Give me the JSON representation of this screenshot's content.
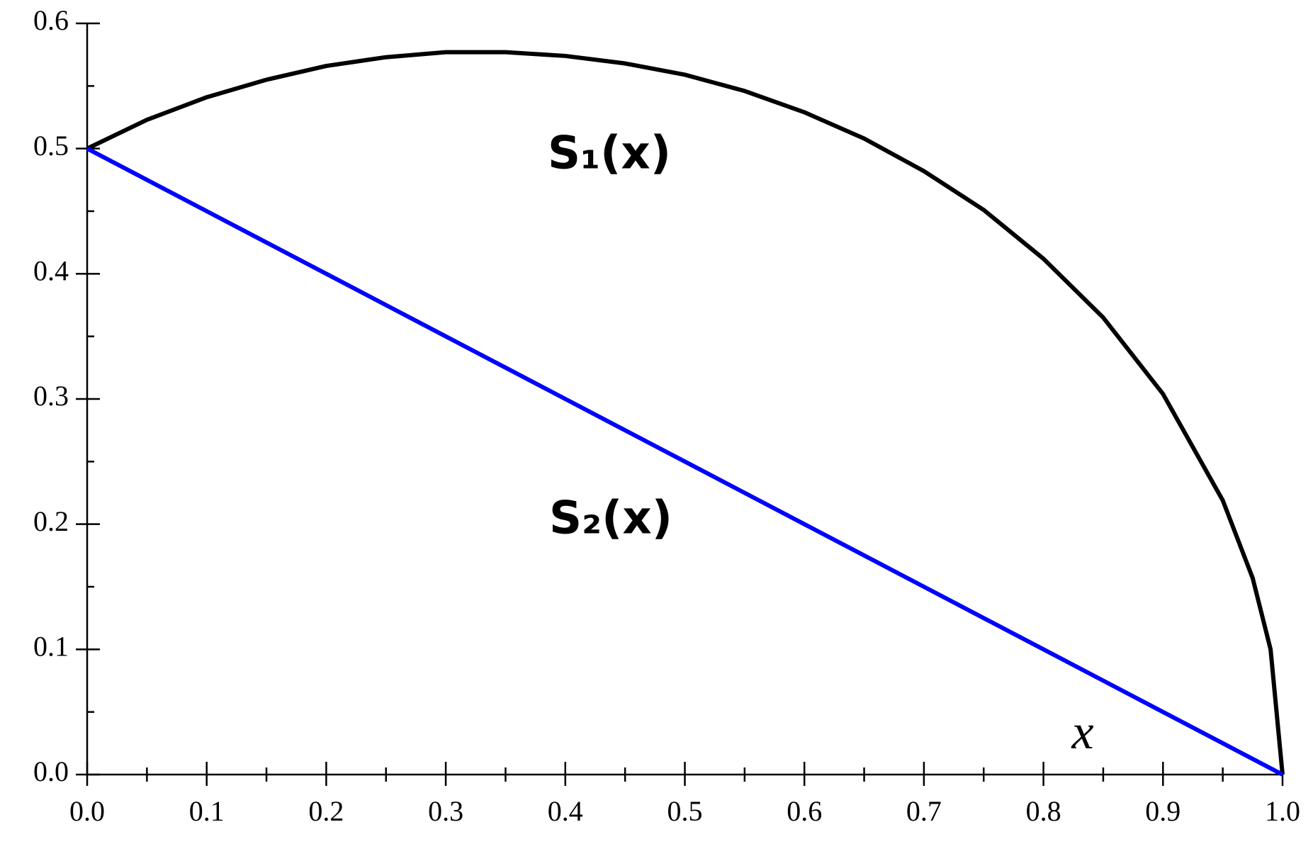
{
  "chart_data": {
    "type": "line",
    "x": [
      0,
      0.05,
      0.1,
      0.15,
      0.2,
      0.25,
      0.3,
      0.35,
      0.4,
      0.45,
      0.5,
      0.55,
      0.6,
      0.65,
      0.7,
      0.75,
      0.8,
      0.85,
      0.9,
      0.95,
      0.975,
      0.99,
      1
    ],
    "series": [
      {
        "name": "S₁(x)",
        "color": "#000000",
        "values": [
          0.5,
          0.523,
          0.541,
          0.555,
          0.566,
          0.573,
          0.577,
          0.577,
          0.574,
          0.568,
          0.559,
          0.546,
          0.529,
          0.508,
          0.482,
          0.451,
          0.412,
          0.365,
          0.304,
          0.219,
          0.157,
          0.1,
          0
        ]
      },
      {
        "name": "S₂(x)",
        "color": "#0000ff",
        "values": [
          0.5,
          0.475,
          0.45,
          0.425,
          0.4,
          0.375,
          0.35,
          0.325,
          0.3,
          0.275,
          0.25,
          0.225,
          0.2,
          0.175,
          0.15,
          0.125,
          0.1,
          0.075,
          0.05,
          0.025,
          0.0125,
          0.005,
          0
        ]
      }
    ],
    "x_label": "x",
    "xlim": [
      0,
      1
    ],
    "ylim": [
      0,
      0.6
    ],
    "xticks": [
      {
        "value": 0,
        "label": "0.0"
      },
      0.1,
      0.2,
      0.3,
      0.4,
      0.5,
      0.6,
      0.7,
      0.8,
      0.9,
      {
        "value": 1,
        "label": "1.0"
      }
    ],
    "yticks": [
      {
        "value": 0,
        "label": "0.0"
      },
      0.1,
      0.2,
      0.3,
      0.4,
      0.5,
      0.6
    ],
    "grid": false
  }
}
